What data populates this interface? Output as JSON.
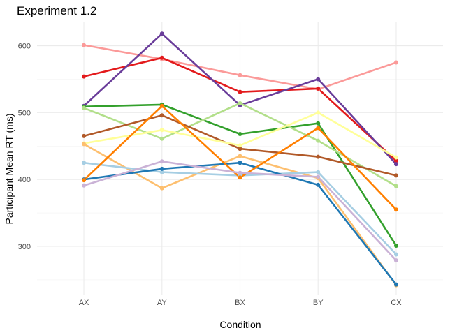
{
  "chart_data": {
    "type": "line",
    "title": "Experiment 1.2",
    "xlabel": "Condition",
    "ylabel": "Participant Mean RT (ms)",
    "categories": [
      "AX",
      "AY",
      "BX",
      "BY",
      "CX"
    ],
    "ylim": [
      228,
      635
    ],
    "yticks": [
      300,
      400,
      500,
      600
    ],
    "grid": true,
    "legend": "none",
    "series": [
      {
        "color": "#FB9A99",
        "values": [
          601,
          580,
          556,
          535,
          575
        ]
      },
      {
        "color": "#E31A1C",
        "values": [
          554,
          582,
          531,
          536,
          428
        ]
      },
      {
        "color": "#6A3D9A",
        "values": [
          510,
          618,
          511,
          550,
          423
        ]
      },
      {
        "color": "#33A02C",
        "values": [
          509,
          512,
          468,
          484,
          301
        ]
      },
      {
        "color": "#B2DF8A",
        "values": [
          507,
          461,
          514,
          458,
          390
        ]
      },
      {
        "color": "#B15928",
        "values": [
          465,
          496,
          446,
          434,
          406
        ]
      },
      {
        "color": "#FFFF99",
        "values": [
          454,
          474,
          451,
          500,
          433
        ]
      },
      {
        "color": "#FDBF6F",
        "values": [
          453,
          387,
          435,
          402,
          242
        ]
      },
      {
        "color": "#A6CEE3",
        "values": [
          425,
          411,
          406,
          411,
          288
        ]
      },
      {
        "color": "#1F78B4",
        "values": [
          400,
          416,
          425,
          392,
          243
        ]
      },
      {
        "color": "#FF7F00",
        "values": [
          399,
          510,
          403,
          477,
          355
        ]
      },
      {
        "color": "#CAB2D6",
        "values": [
          391,
          427,
          410,
          404,
          279
        ]
      }
    ]
  }
}
